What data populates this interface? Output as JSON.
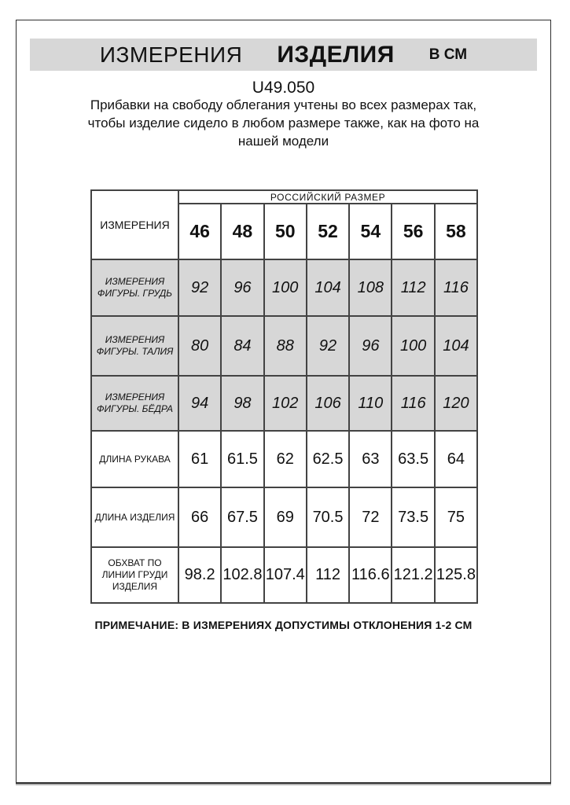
{
  "title": {
    "part1": "ИЗМЕРЕНИЯ",
    "part2": "ИЗДЕЛИЯ",
    "part3": "В СМ"
  },
  "article_code": "U49.050",
  "subtitle_lines": [
    "Прибавки на свободу облегания учтены во всех размерах так,",
    "чтобы изделие сидело в любом размере также, как на фото на",
    "нашей модели"
  ],
  "table": {
    "corner_label": "ИЗМЕРЕНИЯ",
    "group_header": "РОССИЙСКИЙ РАЗМЕР",
    "sizes": [
      "46",
      "48",
      "50",
      "52",
      "54",
      "56",
      "58"
    ],
    "rows": [
      {
        "label": "ИЗМЕРЕНИЯ ФИГУРЫ. ГРУДЬ",
        "shaded": true,
        "values": [
          "92",
          "96",
          "100",
          "104",
          "108",
          "112",
          "116"
        ]
      },
      {
        "label": "ИЗМЕРЕНИЯ ФИГУРЫ. ТАЛИЯ",
        "shaded": true,
        "values": [
          "80",
          "84",
          "88",
          "92",
          "96",
          "100",
          "104"
        ]
      },
      {
        "label": "ИЗМЕРЕНИЯ ФИГУРЫ. БЁДРА",
        "shaded": true,
        "values": [
          "94",
          "98",
          "102",
          "106",
          "110",
          "116",
          "120"
        ]
      },
      {
        "label": "ДЛИНА РУКАВА",
        "shaded": false,
        "values": [
          "61",
          "61.5",
          "62",
          "62.5",
          "63",
          "63.5",
          "64"
        ]
      },
      {
        "label": "ДЛИНА ИЗДЕЛИЯ",
        "shaded": false,
        "values": [
          "66",
          "67.5",
          "69",
          "70.5",
          "72",
          "73.5",
          "75"
        ]
      },
      {
        "label": "ОБХВАТ ПО ЛИНИИ ГРУДИ ИЗДЕЛИЯ",
        "shaded": false,
        "values": [
          "98.2",
          "102.8",
          "107.4",
          "112",
          "116.6",
          "121.2",
          "125.8"
        ]
      }
    ]
  },
  "note": "ПРИМЕЧАНИЕ: В ИЗМЕРЕНИЯХ ДОПУСТИМЫ ОТКЛОНЕНИЯ 1-2 СМ",
  "colors": {
    "header_bar": "#d7d7d7",
    "shaded_row": "#d7d7d7",
    "table_border": "#434343",
    "page_border": "#2e2e2e"
  }
}
